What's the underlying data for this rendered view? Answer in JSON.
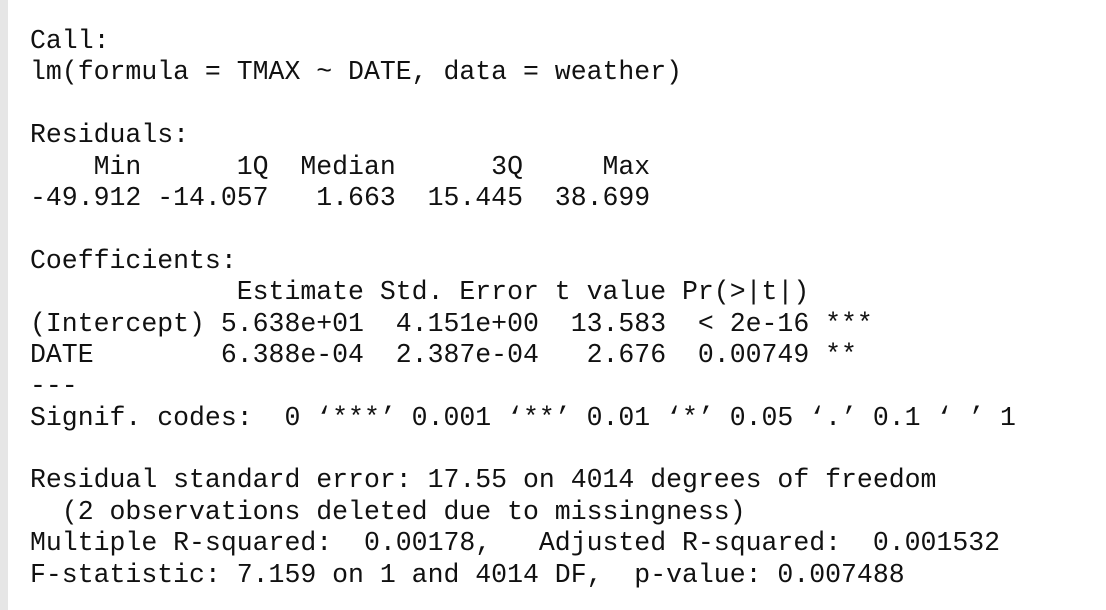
{
  "call": {
    "label": "Call:",
    "lines": [
      "lm(formula = TMAX ~ DATE, data = weather)"
    ]
  },
  "residuals": {
    "label": "Residuals:",
    "lines": [
      "    Min      1Q  Median      3Q     Max",
      "-49.912 -14.057   1.663  15.445  38.699"
    ]
  },
  "coefficients": {
    "label": "Coefficients:",
    "lines": [
      "             Estimate Std. Error t value Pr(>|t|)",
      "(Intercept) 5.638e+01  4.151e+00  13.583  < 2e-16 ***",
      "DATE        6.388e-04  2.387e-04   2.676  0.00749 **",
      "---",
      "Signif. codes:  0 ‘***’ 0.001 ‘**’ 0.01 ‘*’ 0.05 ‘.’ 0.1 ‘ ’ 1"
    ]
  },
  "summary": {
    "lines": [
      "Residual standard error: 17.55 on 4014 degrees of freedom",
      "  (2 observations deleted due to missingness)",
      "Multiple R-squared:  0.00178,   Adjusted R-squared:  0.001532",
      "F-statistic: 7.159 on 1 and 4014 DF,  p-value: 0.007488"
    ]
  }
}
